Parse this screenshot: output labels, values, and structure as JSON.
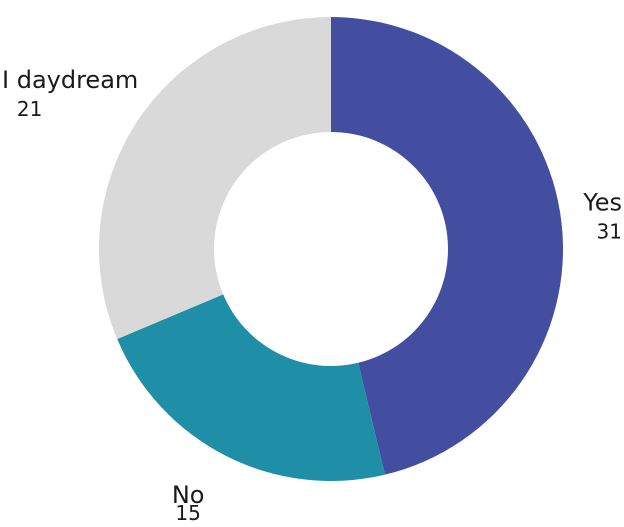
{
  "chart_data": {
    "type": "pie",
    "donut": true,
    "legend": "none",
    "categories": [
      "Yes",
      "No",
      "I daydream"
    ],
    "values": [
      31,
      15,
      21
    ],
    "colors": [
      "#434EA1",
      "#1E8FA7",
      "#D9D9D9"
    ]
  }
}
